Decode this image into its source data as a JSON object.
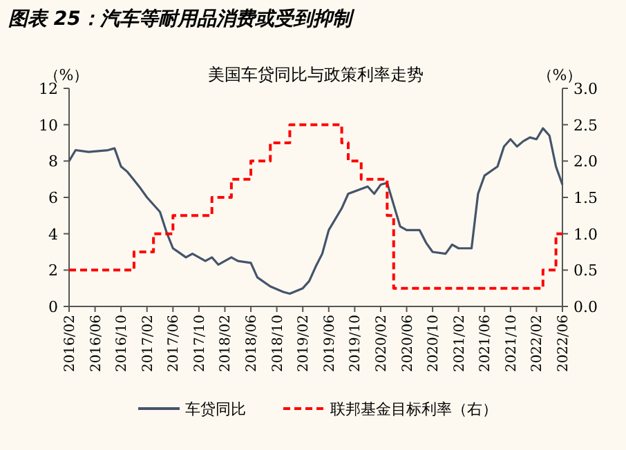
{
  "chart_data": {
    "type": "line",
    "title": "图表 25：汽车等耐用品消费或受到抑制",
    "subtitle": "美国车贷同比与政策利率走势",
    "ylabel": "（%）",
    "y2label": "（%）",
    "series": [
      {
        "name": "车贷同比",
        "color": "#44546a",
        "line_style": "solid",
        "x": [
          "2016-02",
          "2016-03",
          "2016-05",
          "2016-08",
          "2016-09",
          "2016-10",
          "2016-11",
          "2017-01",
          "2017-02",
          "2017-04",
          "2017-05",
          "2017-06",
          "2017-08",
          "2017-09",
          "2017-11",
          "2017-12",
          "2018-01",
          "2018-03",
          "2018-04",
          "2018-06",
          "2018-07",
          "2018-09",
          "2018-11",
          "2018-12",
          "2019-02",
          "2019-03",
          "2019-04",
          "2019-05",
          "2019-06",
          "2019-08",
          "2019-09",
          "2019-12",
          "2020-01",
          "2020-02",
          "2020-03",
          "2020-05",
          "2020-06",
          "2020-08",
          "2020-09",
          "2020-10",
          "2020-12",
          "2021-01",
          "2021-02",
          "2021-04",
          "2021-05",
          "2021-06",
          "2021-08",
          "2021-09",
          "2021-10",
          "2021-11",
          "2021-12",
          "2022-01",
          "2022-02",
          "2022-03",
          "2022-04",
          "2022-05",
          "2022-06"
        ],
        "values": [
          8.0,
          8.6,
          8.5,
          8.6,
          8.7,
          7.7,
          7.4,
          6.5,
          6.0,
          5.2,
          4.1,
          3.2,
          2.7,
          2.9,
          2.5,
          2.7,
          2.3,
          2.7,
          2.5,
          2.4,
          1.6,
          1.1,
          0.8,
          0.7,
          1.0,
          1.4,
          2.2,
          2.9,
          4.2,
          5.4,
          6.2,
          6.6,
          6.2,
          6.7,
          6.8,
          4.4,
          4.2,
          4.2,
          3.5,
          3.0,
          2.9,
          3.4,
          3.2,
          3.2,
          6.2,
          7.2,
          7.7,
          8.8,
          9.2,
          8.8,
          9.1,
          9.3,
          9.2,
          9.8,
          9.4,
          7.7,
          6.7
        ]
      },
      {
        "name": "联邦基金目标利率（右）",
        "color": "#ff0000",
        "type": "step",
        "axis": "y2",
        "line_style": "dashed",
        "x": [
          "2016-02",
          "2016-12",
          "2017-03",
          "2017-06",
          "2017-12",
          "2018-03",
          "2018-06",
          "2018-09",
          "2018-12",
          "2019-08",
          "2019-09",
          "2019-11",
          "2020-03",
          "2020-04",
          "2022-03",
          "2022-05",
          "2022-06"
        ],
        "values": [
          0.5,
          0.75,
          1.0,
          1.25,
          1.5,
          1.75,
          2.0,
          2.25,
          2.5,
          2.25,
          2.0,
          1.75,
          1.25,
          0.25,
          0.5,
          1.0,
          1.0
        ]
      }
    ],
    "xlim": [
      "2016-02",
      "2022-06"
    ],
    "xticks": [
      {
        "value": "2016-02",
        "label": "2016/02"
      },
      {
        "value": "2016-06",
        "label": "2016/06"
      },
      {
        "value": "2016-10",
        "label": "2016/10"
      },
      {
        "value": "2017-02",
        "label": "2017/02"
      },
      {
        "value": "2017-06",
        "label": "2017/06"
      },
      {
        "value": "2017-10",
        "label": "2017/10"
      },
      {
        "value": "2018-02",
        "label": "2018/02"
      },
      {
        "value": "2018-06",
        "label": "2018/06"
      },
      {
        "value": "2018-10",
        "label": "2018/10"
      },
      {
        "value": "2019-02",
        "label": "2019/02"
      },
      {
        "value": "2019-06",
        "label": "2019/06"
      },
      {
        "value": "2019-10",
        "label": "2019/10"
      },
      {
        "value": "2020-02",
        "label": "2020/02"
      },
      {
        "value": "2020-06",
        "label": "2020/06"
      },
      {
        "value": "2020-10",
        "label": "2020/10"
      },
      {
        "value": "2021-02",
        "label": "2021/02"
      },
      {
        "value": "2021-06",
        "label": "2021/06"
      },
      {
        "value": "2021-10",
        "label": "2021/10"
      },
      {
        "value": "2022-02",
        "label": "2022/02"
      },
      {
        "value": "2022-06",
        "label": "2022/06"
      }
    ],
    "ylim": [
      0,
      12
    ],
    "yticks": [
      0,
      2,
      4,
      6,
      8,
      10,
      12
    ],
    "y2lim": [
      0,
      3
    ],
    "y2ticks": [
      {
        "value": 0,
        "label": "0.0"
      },
      {
        "value": 0.5,
        "label": "0.5"
      },
      {
        "value": 1,
        "label": "1.0"
      },
      {
        "value": 1.5,
        "label": "1.5"
      },
      {
        "value": 2,
        "label": "2.0"
      },
      {
        "value": 2.5,
        "label": "2.5"
      },
      {
        "value": 3,
        "label": "3.0"
      }
    ],
    "grid": false,
    "legend": "bottom",
    "marker": "none"
  }
}
